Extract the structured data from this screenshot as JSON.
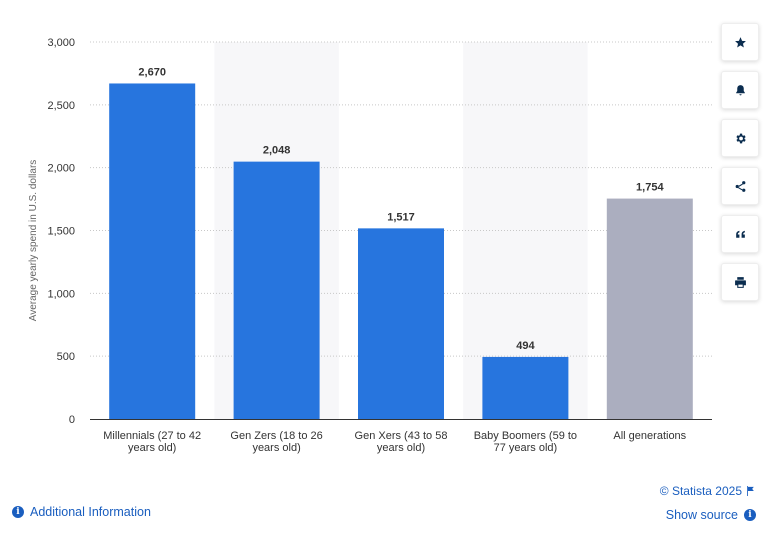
{
  "chart_data": {
    "type": "bar",
    "categories": [
      [
        "Millennials (27 to 42",
        "years old)"
      ],
      [
        "Gen Zers (18 to 26",
        "years old)"
      ],
      [
        "Gen Xers (43 to 58",
        "years old)"
      ],
      [
        "Baby Boomers (59 to",
        "77 years old)"
      ],
      [
        "All generations"
      ]
    ],
    "values": [
      2670,
      2048,
      1517,
      494,
      1754
    ],
    "value_labels": [
      "2,670",
      "2,048",
      "1,517",
      "494",
      "1,754"
    ],
    "bar_colors": [
      "#2775de",
      "#2775de",
      "#2775de",
      "#2775de",
      "#abaebf"
    ],
    "ylabel": "Average yearly spend in U.S. dollars",
    "ylim": [
      0,
      3000
    ],
    "yticks": [
      0,
      500,
      1000,
      1500,
      2000,
      2500,
      3000
    ],
    "ytick_labels": [
      "0",
      "500",
      "1,000",
      "1,500",
      "2,000",
      "2,500",
      "3,000"
    ],
    "grid": true
  },
  "toolbar": {
    "buttons": [
      {
        "name": "favorite-button",
        "icon": "star-icon"
      },
      {
        "name": "notification-button",
        "icon": "bell-icon"
      },
      {
        "name": "settings-button",
        "icon": "gear-icon"
      },
      {
        "name": "share-button",
        "icon": "share-icon"
      },
      {
        "name": "cite-button",
        "icon": "quote-icon"
      },
      {
        "name": "print-button",
        "icon": "print-icon"
      }
    ]
  },
  "footer": {
    "additional_info": "Additional Information",
    "credit": "© Statista 2025",
    "show_source": "Show source"
  },
  "colors": {
    "accent": "#1a5ebf",
    "bar": "#2775de",
    "total_bar": "#abaebf",
    "band": "#f7f7f9"
  }
}
